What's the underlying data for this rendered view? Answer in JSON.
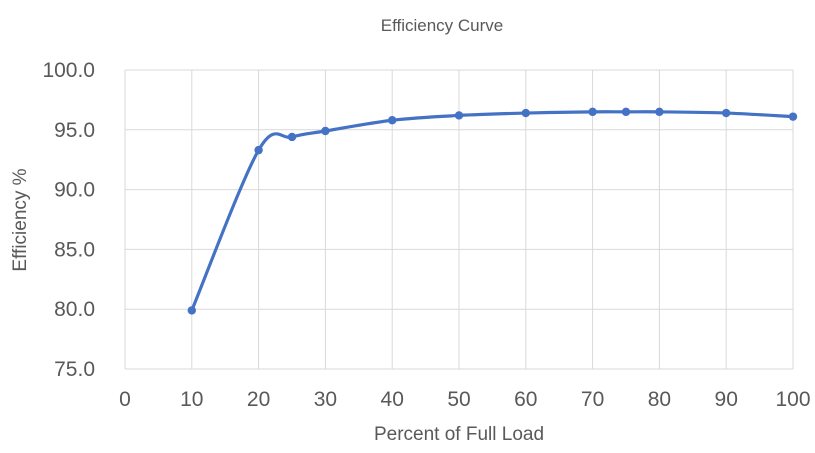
{
  "chart_data": {
    "type": "line",
    "title": "Efficiency Curve",
    "xlabel": "Percent of Full Load",
    "ylabel": "Efficiency %",
    "xlim": [
      0,
      100
    ],
    "ylim": [
      75,
      100
    ],
    "x_ticks": [
      "0",
      "10",
      "20",
      "30",
      "40",
      "50",
      "60",
      "70",
      "80",
      "90",
      "100"
    ],
    "y_ticks": [
      "75.0",
      "80.0",
      "85.0",
      "90.0",
      "95.0",
      "100.0"
    ],
    "grid": true,
    "smoothed": true,
    "series": [
      {
        "color": "#4472c4",
        "x": [
          10,
          20,
          25,
          30,
          40,
          50,
          60,
          70,
          75,
          80,
          90,
          100
        ],
        "y": [
          79.9,
          93.3,
          94.4,
          94.9,
          95.8,
          96.2,
          96.4,
          96.5,
          96.5,
          96.5,
          96.4,
          96.1
        ]
      }
    ]
  }
}
